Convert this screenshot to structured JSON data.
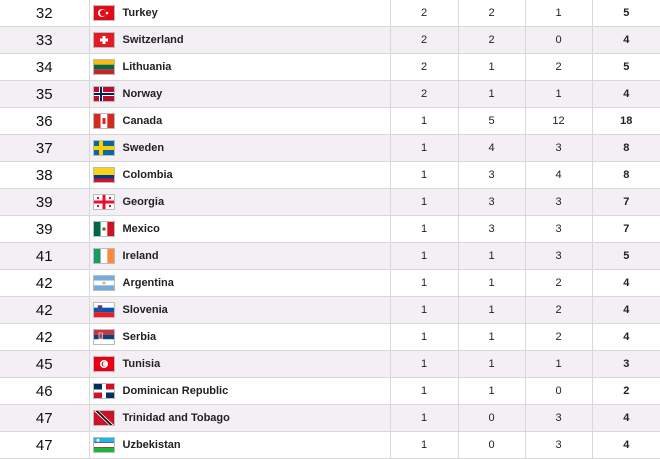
{
  "table": {
    "rows": [
      {
        "rank": 32,
        "country": "Turkey",
        "gold": 2,
        "silver": 2,
        "bronze": 1,
        "total": 5
      },
      {
        "rank": 33,
        "country": "Switzerland",
        "gold": 2,
        "silver": 2,
        "bronze": 0,
        "total": 4
      },
      {
        "rank": 34,
        "country": "Lithuania",
        "gold": 2,
        "silver": 1,
        "bronze": 2,
        "total": 5
      },
      {
        "rank": 35,
        "country": "Norway",
        "gold": 2,
        "silver": 1,
        "bronze": 1,
        "total": 4
      },
      {
        "rank": 36,
        "country": "Canada",
        "gold": 1,
        "silver": 5,
        "bronze": 12,
        "total": 18
      },
      {
        "rank": 37,
        "country": "Sweden",
        "gold": 1,
        "silver": 4,
        "bronze": 3,
        "total": 8
      },
      {
        "rank": 38,
        "country": "Colombia",
        "gold": 1,
        "silver": 3,
        "bronze": 4,
        "total": 8
      },
      {
        "rank": 39,
        "country": "Georgia",
        "gold": 1,
        "silver": 3,
        "bronze": 3,
        "total": 7
      },
      {
        "rank": 39,
        "country": "Mexico",
        "gold": 1,
        "silver": 3,
        "bronze": 3,
        "total": 7
      },
      {
        "rank": 41,
        "country": "Ireland",
        "gold": 1,
        "silver": 1,
        "bronze": 3,
        "total": 5
      },
      {
        "rank": 42,
        "country": "Argentina",
        "gold": 1,
        "silver": 1,
        "bronze": 2,
        "total": 4
      },
      {
        "rank": 42,
        "country": "Slovenia",
        "gold": 1,
        "silver": 1,
        "bronze": 2,
        "total": 4
      },
      {
        "rank": 42,
        "country": "Serbia",
        "gold": 1,
        "silver": 1,
        "bronze": 2,
        "total": 4
      },
      {
        "rank": 45,
        "country": "Tunisia",
        "gold": 1,
        "silver": 1,
        "bronze": 1,
        "total": 3
      },
      {
        "rank": 46,
        "country": "Dominican Republic",
        "gold": 1,
        "silver": 1,
        "bronze": 0,
        "total": 2
      },
      {
        "rank": 47,
        "country": "Trinidad and Tobago",
        "gold": 1,
        "silver": 0,
        "bronze": 3,
        "total": 4
      },
      {
        "rank": 47,
        "country": "Uzbekistan",
        "gold": 1,
        "silver": 0,
        "bronze": 3,
        "total": 4
      }
    ]
  }
}
